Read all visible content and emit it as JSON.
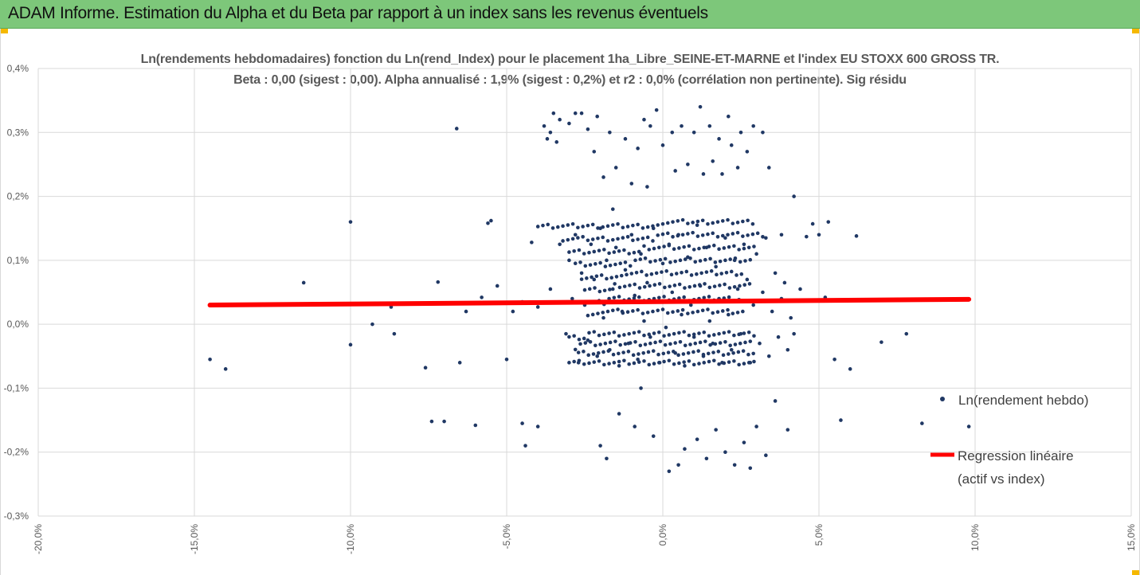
{
  "header": {
    "title": "ADAM Informe. Estimation du Alpha et du Beta par rapport à un index sans les revenus éventuels"
  },
  "accent_color": "#f5b800",
  "header_color": "#7dc77a",
  "chart_data": {
    "type": "scatter",
    "title": "Ln(rendements hebdomadaires) fonction du Ln(rend_Index) pour le placement 1ha_Libre_SEINE-ET-MARNE  et l'index EU STOXX 600 GROSS TR.",
    "subtitle": "Beta : 0,00 (sigest : 0,00). Alpha annualisé : 1,9% (sigest : 0,2%) et r2 : 0,0% (corrélation non pertinente). Sig résidu",
    "xlim": [
      -0.2,
      0.15
    ],
    "ylim": [
      -0.003,
      0.004
    ],
    "x_ticks": [
      "-20,0%",
      "-15,0%",
      "-10,0%",
      "-5,0%",
      "0,0%",
      "5,0%",
      "10,0%",
      "15,0%"
    ],
    "y_ticks": [
      "0,4%",
      "0,3%",
      "0,2%",
      "0,1%",
      "0,0%",
      "-0,1%",
      "-0,2%",
      "-0,3%"
    ],
    "grid": true,
    "legend_position": "right",
    "series": [
      {
        "name": "Ln(rendement hebdo)",
        "color": "#203864",
        "marker": "dot",
        "points": [
          [
            -0.145,
            -0.00055
          ],
          [
            -0.14,
            -0.0007
          ],
          [
            -0.115,
            0.00065
          ],
          [
            -0.1,
            0.0016
          ],
          [
            -0.1,
            -0.00032
          ],
          [
            -0.093,
            0.0
          ],
          [
            -0.087,
            0.00027
          ],
          [
            -0.086,
            -0.00015
          ],
          [
            -0.076,
            -0.00068
          ],
          [
            -0.074,
            -0.00152
          ],
          [
            -0.072,
            0.00066
          ],
          [
            -0.07,
            -0.00152
          ],
          [
            -0.066,
            0.00306
          ],
          [
            -0.065,
            -0.0006
          ],
          [
            -0.063,
            0.0002
          ],
          [
            -0.06,
            -0.00158
          ],
          [
            -0.058,
            0.00042
          ],
          [
            -0.056,
            0.00158
          ],
          [
            -0.055,
            0.00162
          ],
          [
            -0.053,
            0.0006
          ],
          [
            -0.05,
            -0.00055
          ],
          [
            -0.048,
            0.0002
          ],
          [
            -0.045,
            -0.00155
          ],
          [
            -0.044,
            -0.0019
          ],
          [
            -0.042,
            0.00128
          ],
          [
            -0.04,
            -0.0016
          ],
          [
            -0.038,
            0.0031
          ],
          [
            -0.037,
            0.0029
          ],
          [
            -0.036,
            0.003
          ],
          [
            -0.035,
            0.0033
          ],
          [
            -0.034,
            0.00285
          ],
          [
            -0.033,
            0.0032
          ],
          [
            -0.03,
            0.00314
          ],
          [
            -0.028,
            0.0033
          ],
          [
            -0.026,
            0.0033
          ],
          [
            -0.024,
            0.00305
          ],
          [
            -0.022,
            0.0027
          ],
          [
            -0.021,
            0.00325
          ],
          [
            -0.02,
            -0.0019
          ],
          [
            -0.019,
            0.0023
          ],
          [
            -0.018,
            -0.0021
          ],
          [
            -0.017,
            0.003
          ],
          [
            -0.016,
            0.0018
          ],
          [
            -0.015,
            0.00245
          ],
          [
            -0.014,
            -0.0014
          ],
          [
            -0.012,
            0.0029
          ],
          [
            -0.01,
            0.0022
          ],
          [
            -0.009,
            -0.0016
          ],
          [
            -0.008,
            0.00275
          ],
          [
            -0.007,
            -0.001
          ],
          [
            -0.006,
            0.0032
          ],
          [
            -0.005,
            0.00215
          ],
          [
            -0.004,
            0.0031
          ],
          [
            -0.003,
            -0.00175
          ],
          [
            -0.002,
            0.00335
          ],
          [
            0.0,
            0.0028
          ],
          [
            0.002,
            -0.0023
          ],
          [
            0.003,
            0.003
          ],
          [
            0.004,
            0.0024
          ],
          [
            0.005,
            -0.0022
          ],
          [
            0.006,
            0.0031
          ],
          [
            0.007,
            -0.00195
          ],
          [
            0.008,
            0.0025
          ],
          [
            0.01,
            0.003
          ],
          [
            0.011,
            -0.0018
          ],
          [
            0.012,
            0.0034
          ],
          [
            0.013,
            0.00235
          ],
          [
            0.014,
            -0.0021
          ],
          [
            0.015,
            0.0031
          ],
          [
            0.016,
            0.00255
          ],
          [
            0.017,
            -0.00165
          ],
          [
            0.018,
            0.0029
          ],
          [
            0.019,
            0.00235
          ],
          [
            0.02,
            -0.002
          ],
          [
            0.021,
            0.00325
          ],
          [
            0.022,
            0.0028
          ],
          [
            0.023,
            -0.0022
          ],
          [
            0.024,
            0.00245
          ],
          [
            0.025,
            0.003
          ],
          [
            0.026,
            -0.00185
          ],
          [
            0.027,
            0.0027
          ],
          [
            0.028,
            -0.00225
          ],
          [
            0.029,
            0.0031
          ],
          [
            0.03,
            -0.0016
          ],
          [
            0.032,
            0.003
          ],
          [
            0.033,
            -0.00205
          ],
          [
            0.034,
            0.00245
          ],
          [
            0.036,
            -0.0012
          ],
          [
            0.038,
            0.0014
          ],
          [
            0.04,
            -0.00165
          ],
          [
            0.042,
            0.002
          ],
          [
            0.044,
            0.00055
          ],
          [
            0.046,
            0.00137
          ],
          [
            0.048,
            0.00157
          ],
          [
            0.05,
            0.0014
          ],
          [
            0.052,
            0.00042
          ],
          [
            0.053,
            0.0016
          ],
          [
            0.055,
            -0.00055
          ],
          [
            0.057,
            -0.0015
          ],
          [
            0.06,
            -0.0007
          ],
          [
            0.062,
            0.00138
          ],
          [
            0.07,
            -0.00028
          ],
          [
            0.078,
            -0.00015
          ],
          [
            0.083,
            -0.00155
          ],
          [
            0.098,
            -0.0016
          ],
          [
            -0.045,
            0.00035
          ],
          [
            -0.04,
            0.00027
          ],
          [
            -0.036,
            0.00055
          ],
          [
            -0.033,
            0.00125
          ],
          [
            -0.031,
            -0.00015
          ],
          [
            -0.03,
            0.001
          ],
          [
            -0.029,
            0.0004
          ],
          [
            -0.028,
            0.0014
          ],
          [
            -0.027,
            -0.0006
          ],
          [
            -0.026,
            0.0008
          ],
          [
            -0.025,
            0.0003
          ],
          [
            -0.024,
            -0.00025
          ],
          [
            -0.023,
            0.00125
          ],
          [
            -0.022,
            0.0007
          ],
          [
            -0.021,
            -0.0005
          ],
          [
            -0.02,
            0.0015
          ],
          [
            -0.019,
            0.0001
          ],
          [
            -0.018,
            0.001
          ],
          [
            -0.017,
            -0.0004
          ],
          [
            -0.016,
            0.00055
          ],
          [
            -0.015,
            0.0012
          ],
          [
            -0.014,
            -0.00065
          ],
          [
            -0.013,
            0.0002
          ],
          [
            -0.012,
            0.00085
          ],
          [
            -0.011,
            -0.0003
          ],
          [
            -0.01,
            0.0014
          ],
          [
            -0.009,
            0.00045
          ],
          [
            -0.008,
            -0.00055
          ],
          [
            -0.007,
            0.0011
          ],
          [
            -0.006,
            5e-05
          ],
          [
            -0.005,
            0.00065
          ],
          [
            -0.004,
            -0.0002
          ],
          [
            -0.003,
            0.0015
          ],
          [
            -0.002,
            0.00035
          ],
          [
            -0.001,
            -0.0006
          ],
          [
            0.0,
            0.00095
          ],
          [
            0.001,
            -5e-05
          ],
          [
            0.002,
            0.00125
          ],
          [
            0.003,
            0.0005
          ],
          [
            0.004,
            -0.00045
          ],
          [
            0.005,
            0.0014
          ],
          [
            0.006,
            0.00015
          ],
          [
            0.007,
            -0.00065
          ],
          [
            0.008,
            0.00105
          ],
          [
            0.009,
            0.0003
          ],
          [
            0.01,
            -0.0002
          ],
          [
            0.011,
            0.00155
          ],
          [
            0.012,
            0.0006
          ],
          [
            0.013,
            -0.0005
          ],
          [
            0.014,
            0.0012
          ],
          [
            0.015,
            5e-05
          ],
          [
            0.016,
            -0.0003
          ],
          [
            0.017,
            0.0009
          ],
          [
            0.018,
            0.0004
          ],
          [
            0.019,
            -0.0006
          ],
          [
            0.02,
            0.00135
          ],
          [
            0.021,
            0.00015
          ],
          [
            0.022,
            -0.0004
          ],
          [
            0.023,
            0.001
          ],
          [
            0.024,
            0.00055
          ],
          [
            0.025,
            -0.00015
          ],
          [
            0.026,
            0.00125
          ],
          [
            0.027,
            0.0007
          ],
          [
            0.028,
            -0.0006
          ],
          [
            0.029,
            0.0003
          ],
          [
            0.03,
            0.0011
          ],
          [
            0.031,
            -0.0003
          ],
          [
            0.032,
            0.0005
          ],
          [
            0.033,
            0.00135
          ],
          [
            0.034,
            -0.0005
          ],
          [
            0.035,
            0.0002
          ],
          [
            0.036,
            0.0008
          ],
          [
            0.037,
            -0.0002
          ],
          [
            0.038,
            0.0004
          ],
          [
            0.039,
            0.00065
          ],
          [
            0.04,
            -0.0004
          ],
          [
            0.041,
            0.0001
          ],
          [
            0.042,
            -0.00015
          ]
        ]
      },
      {
        "name": "Regression linéaire (actif vs index)",
        "color": "#ff0000",
        "line": [
          [
            -0.145,
            0.0003
          ],
          [
            0.098,
            0.00039
          ]
        ]
      }
    ],
    "dense_bands": [
      {
        "y": 0.0016,
        "x_range": [
          -0.04,
          0.03
        ]
      },
      {
        "y": 0.0014,
        "x_range": [
          -0.032,
          0.032
        ]
      },
      {
        "y": 0.0012,
        "x_range": [
          -0.03,
          0.03
        ]
      },
      {
        "y": 0.001,
        "x_range": [
          -0.028,
          0.028
        ]
      },
      {
        "y": 0.0008,
        "x_range": [
          -0.026,
          0.026
        ]
      },
      {
        "y": 0.0006,
        "x_range": [
          -0.025,
          0.028
        ]
      },
      {
        "y": 0.0004,
        "x_range": [
          -0.022,
          0.025
        ]
      },
      {
        "y": 0.0002,
        "x_range": [
          -0.024,
          0.026
        ]
      },
      {
        "y": -0.00015,
        "x_range": [
          -0.03,
          0.03
        ]
      },
      {
        "y": -0.0003,
        "x_range": [
          -0.028,
          0.028
        ]
      },
      {
        "y": -0.00045,
        "x_range": [
          -0.027,
          0.03
        ]
      },
      {
        "y": -0.0006,
        "x_range": [
          -0.03,
          0.03
        ]
      }
    ]
  }
}
